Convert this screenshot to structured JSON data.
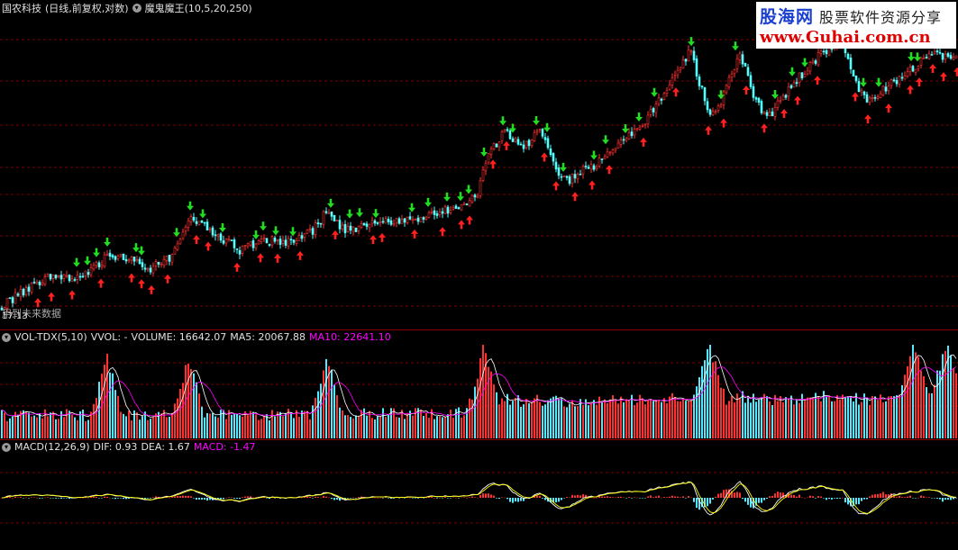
{
  "price": {
    "stock_name": "国农科技",
    "period_info": "(日线,前复权,对数)",
    "indicator": "魔鬼魔王(10,5,20,250)",
    "overlay_text": "用到未来数据",
    "low_mark": "17.13"
  },
  "volume": {
    "indicator": "VOL-TDX(5,10)",
    "vvol": "VVOL: -",
    "volume": "VOLUME: 16642.07",
    "ma5": "MA5: 20067.88",
    "ma10": "MA10: 22641.10"
  },
  "macd": {
    "indicator": "MACD(12,26,9)",
    "dif": "DIF: 0.93",
    "dea": "DEA: 1.67",
    "macd": "MACD: -1.47"
  },
  "watermark": {
    "brand": "股海网",
    "subtitle": "股票软件资源分享",
    "url": "www.Guhai.com.cn"
  },
  "colors": {
    "up": "#ff3232",
    "down": "#54ffff",
    "buy_arrow": "#ff2020",
    "sell_arrow": "#22dd22",
    "grid": "#7a0000",
    "dif": "#ffffff",
    "dea": "#ffff00",
    "ma10": "#ff00ff"
  },
  "chart_data": {
    "type": "candlestick",
    "anchors_close": [
      [
        0,
        17.3
      ],
      [
        30,
        18.6
      ],
      [
        60,
        19.6
      ],
      [
        90,
        19.2
      ],
      [
        120,
        21.0
      ],
      [
        140,
        20.6
      ],
      [
        165,
        19.8
      ],
      [
        190,
        20.9
      ],
      [
        210,
        23.8
      ],
      [
        240,
        22.6
      ],
      [
        265,
        21.3
      ],
      [
        290,
        22.1
      ],
      [
        320,
        21.9
      ],
      [
        345,
        22.8
      ],
      [
        362,
        24.6
      ],
      [
        380,
        22.9
      ],
      [
        410,
        23.4
      ],
      [
        430,
        23.6
      ],
      [
        460,
        24.0
      ],
      [
        490,
        24.5
      ],
      [
        515,
        25.0
      ],
      [
        530,
        26.4
      ],
      [
        540,
        30.2
      ],
      [
        560,
        32.8
      ],
      [
        580,
        31.2
      ],
      [
        600,
        33.0
      ],
      [
        615,
        28.5
      ],
      [
        630,
        27.6
      ],
      [
        660,
        29.2
      ],
      [
        690,
        31.6
      ],
      [
        715,
        34.0
      ],
      [
        740,
        38.5
      ],
      [
        765,
        44.2
      ],
      [
        780,
        37.0
      ],
      [
        792,
        34.5
      ],
      [
        805,
        38.4
      ],
      [
        820,
        43.5
      ],
      [
        835,
        37.6
      ],
      [
        850,
        34.4
      ],
      [
        870,
        37.4
      ],
      [
        895,
        41.6
      ],
      [
        915,
        44.0
      ],
      [
        935,
        45.3
      ],
      [
        950,
        38.4
      ],
      [
        965,
        36.4
      ],
      [
        985,
        39.0
      ],
      [
        1000,
        39.8
      ],
      [
        1020,
        42.4
      ],
      [
        1040,
        43.4
      ],
      [
        1063,
        42.6
      ]
    ],
    "volume_spikes": [
      118,
      208,
      362,
      535,
      786,
      1012,
      1050
    ],
    "buy_signal_x": [
      42,
      57,
      80,
      112,
      146,
      157,
      168,
      186,
      218,
      231,
      263,
      289,
      308,
      333,
      372,
      414,
      424,
      460,
      491,
      512,
      521,
      547,
      562,
      604,
      617,
      638,
      657,
      676,
      714,
      750,
      786,
      803,
      828,
      848,
      870,
      885,
      907,
      949,
      963,
      986,
      1010,
      1020,
      1035,
      1047,
      1062
    ],
    "sell_signal_x": [
      85,
      97,
      107,
      119,
      151,
      157,
      196,
      211,
      225,
      247,
      284,
      292,
      306,
      325,
      367,
      388,
      399,
      417,
      457,
      475,
      496,
      511,
      520,
      537,
      558,
      569,
      595,
      607,
      625,
      659,
      672,
      694,
      709,
      726,
      767,
      800,
      816,
      860,
      879,
      893,
      958,
      975,
      1011,
      1018,
      1040
    ],
    "ylim_price": [
      16.5,
      50
    ],
    "scale": "log"
  }
}
